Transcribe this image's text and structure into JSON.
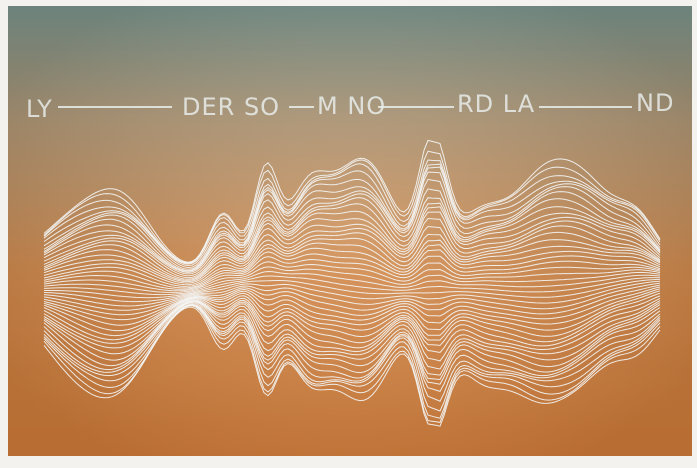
{
  "words": [
    "LY",
    "DER SO",
    "M NO",
    "RD LA",
    "ND"
  ]
}
